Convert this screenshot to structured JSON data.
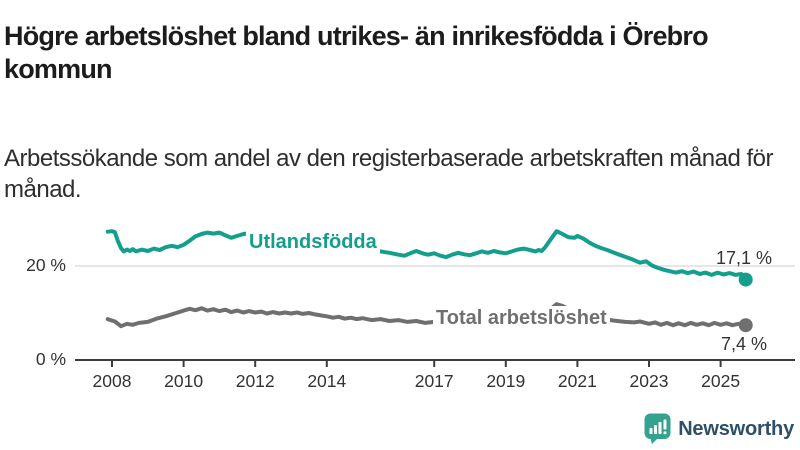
{
  "header": {
    "title": "Högre arbetslöshet bland utrikes- än inrikesfödda i Örebro kommun",
    "subtitle": "Arbetssökande som andel av den registerbaserade arbetskraften månad för månad."
  },
  "colors": {
    "teal_series": "#149e8d",
    "gray_series": "#6f6f6f",
    "axis": "#3c3c3c",
    "gridline": "#d8d8d8",
    "text": "#333333",
    "logo_icon": "#35a18f",
    "logo_text": "#2e4f68"
  },
  "chart_data": {
    "type": "line",
    "title": "Högre arbetslöshet bland utrikes- än inrikesfödda i Örebro kommun",
    "subtitle": "Arbetssökande som andel av den registerbaserade arbetskraften månad för månad.",
    "grid": "horizontal, only at 20 %",
    "legend_position": "inline labels on lines, value labels at line ends",
    "y_axis": {
      "ticks": [
        {
          "value": 0,
          "label": "0 %"
        },
        {
          "value": 20,
          "label": "20 %"
        }
      ],
      "range": [
        0,
        30
      ]
    },
    "x_axis": {
      "ticks": [
        {
          "value": 2008,
          "label": "2008"
        },
        {
          "value": 2010,
          "label": "2010"
        },
        {
          "value": 2012,
          "label": "2012"
        },
        {
          "value": 2014,
          "label": "2014"
        },
        {
          "value": 2017,
          "label": "2017"
        },
        {
          "value": 2019,
          "label": "2019"
        },
        {
          "value": 2021,
          "label": "2021"
        },
        {
          "value": 2023,
          "label": "2023"
        },
        {
          "value": 2025,
          "label": "2025"
        }
      ],
      "range": [
        2007.8,
        2026.2
      ]
    },
    "series": [
      {
        "name": "Utlandsfödda",
        "color": "#149e8d",
        "end_label": "17,1 %",
        "end_value": 17.1,
        "points": [
          [
            2007.88,
            27.3
          ],
          [
            2008.0,
            27.4
          ],
          [
            2008.08,
            27.2
          ],
          [
            2008.17,
            25.2
          ],
          [
            2008.25,
            23.8
          ],
          [
            2008.33,
            23.1
          ],
          [
            2008.42,
            23.5
          ],
          [
            2008.5,
            23.2
          ],
          [
            2008.58,
            23.6
          ],
          [
            2008.67,
            23.1
          ],
          [
            2008.83,
            23.5
          ],
          [
            2009.0,
            23.2
          ],
          [
            2009.17,
            23.7
          ],
          [
            2009.33,
            23.4
          ],
          [
            2009.5,
            24.0
          ],
          [
            2009.67,
            24.3
          ],
          [
            2009.83,
            24.0
          ],
          [
            2010.0,
            24.5
          ],
          [
            2010.17,
            25.4
          ],
          [
            2010.33,
            26.3
          ],
          [
            2010.5,
            26.8
          ],
          [
            2010.67,
            27.1
          ],
          [
            2010.83,
            26.9
          ],
          [
            2011.0,
            27.1
          ],
          [
            2011.17,
            26.5
          ],
          [
            2011.33,
            26.0
          ],
          [
            2011.5,
            26.4
          ],
          [
            2011.67,
            26.8
          ],
          [
            2011.83,
            27.0
          ],
          [
            2012.0,
            26.6
          ],
          [
            2012.17,
            25.9
          ],
          [
            2012.33,
            25.4
          ],
          [
            2012.5,
            25.9
          ],
          [
            2012.67,
            26.3
          ],
          [
            2012.83,
            26.7
          ],
          [
            2013.0,
            26.4
          ],
          [
            2013.25,
            26.0
          ],
          [
            2013.5,
            25.7
          ],
          [
            2013.75,
            25.3
          ],
          [
            2014.0,
            25.0
          ],
          [
            2014.25,
            24.6
          ],
          [
            2014.5,
            24.3
          ],
          [
            2014.75,
            23.9
          ],
          [
            2015.0,
            23.6
          ],
          [
            2015.25,
            23.3
          ],
          [
            2015.5,
            23.1
          ],
          [
            2015.75,
            22.8
          ],
          [
            2016.0,
            22.4
          ],
          [
            2016.17,
            22.2
          ],
          [
            2016.33,
            22.7
          ],
          [
            2016.5,
            23.2
          ],
          [
            2016.67,
            22.7
          ],
          [
            2016.83,
            22.4
          ],
          [
            2017.0,
            22.7
          ],
          [
            2017.17,
            22.2
          ],
          [
            2017.33,
            21.9
          ],
          [
            2017.5,
            22.4
          ],
          [
            2017.67,
            22.8
          ],
          [
            2017.83,
            22.5
          ],
          [
            2018.0,
            22.3
          ],
          [
            2018.17,
            22.7
          ],
          [
            2018.33,
            23.1
          ],
          [
            2018.5,
            22.8
          ],
          [
            2018.67,
            23.2
          ],
          [
            2018.83,
            22.9
          ],
          [
            2019.0,
            22.7
          ],
          [
            2019.17,
            23.1
          ],
          [
            2019.33,
            23.5
          ],
          [
            2019.5,
            23.7
          ],
          [
            2019.67,
            23.4
          ],
          [
            2019.83,
            23.1
          ],
          [
            2019.92,
            23.4
          ],
          [
            2020.0,
            23.2
          ],
          [
            2020.08,
            23.8
          ],
          [
            2020.25,
            25.6
          ],
          [
            2020.42,
            27.4
          ],
          [
            2020.5,
            27.1
          ],
          [
            2020.58,
            26.8
          ],
          [
            2020.75,
            26.1
          ],
          [
            2020.92,
            26.0
          ],
          [
            2021.0,
            26.4
          ],
          [
            2021.17,
            25.8
          ],
          [
            2021.33,
            25.0
          ],
          [
            2021.5,
            24.3
          ],
          [
            2021.67,
            23.8
          ],
          [
            2021.83,
            23.4
          ],
          [
            2022.0,
            22.9
          ],
          [
            2022.25,
            22.2
          ],
          [
            2022.5,
            21.5
          ],
          [
            2022.75,
            20.7
          ],
          [
            2022.92,
            21.0
          ],
          [
            2023.08,
            20.1
          ],
          [
            2023.25,
            19.6
          ],
          [
            2023.42,
            19.2
          ],
          [
            2023.58,
            18.9
          ],
          [
            2023.75,
            18.6
          ],
          [
            2023.92,
            18.9
          ],
          [
            2024.08,
            18.5
          ],
          [
            2024.25,
            18.8
          ],
          [
            2024.42,
            18.3
          ],
          [
            2024.58,
            18.6
          ],
          [
            2024.75,
            18.1
          ],
          [
            2024.92,
            18.6
          ],
          [
            2025.08,
            18.2
          ],
          [
            2025.25,
            18.5
          ],
          [
            2025.42,
            18.1
          ],
          [
            2025.58,
            18.3
          ],
          [
            2025.7,
            17.1
          ]
        ]
      },
      {
        "name": "Total arbetslöshet",
        "color": "#6f6f6f",
        "end_label": "7,4 %",
        "end_value": 7.4,
        "points": [
          [
            2007.88,
            8.7
          ],
          [
            2008.08,
            8.2
          ],
          [
            2008.25,
            7.2
          ],
          [
            2008.42,
            7.7
          ],
          [
            2008.58,
            7.5
          ],
          [
            2008.75,
            7.9
          ],
          [
            2009.0,
            8.1
          ],
          [
            2009.25,
            8.8
          ],
          [
            2009.5,
            9.3
          ],
          [
            2009.75,
            9.9
          ],
          [
            2010.0,
            10.5
          ],
          [
            2010.17,
            10.9
          ],
          [
            2010.33,
            10.6
          ],
          [
            2010.5,
            11.0
          ],
          [
            2010.67,
            10.5
          ],
          [
            2010.83,
            10.8
          ],
          [
            2011.0,
            10.4
          ],
          [
            2011.17,
            10.7
          ],
          [
            2011.33,
            10.2
          ],
          [
            2011.5,
            10.5
          ],
          [
            2011.67,
            10.1
          ],
          [
            2011.83,
            10.4
          ],
          [
            2012.0,
            10.1
          ],
          [
            2012.17,
            10.3
          ],
          [
            2012.33,
            9.9
          ],
          [
            2012.5,
            10.2
          ],
          [
            2012.67,
            9.9
          ],
          [
            2012.83,
            10.1
          ],
          [
            2013.0,
            9.9
          ],
          [
            2013.17,
            10.1
          ],
          [
            2013.33,
            9.8
          ],
          [
            2013.5,
            10.0
          ],
          [
            2013.67,
            9.7
          ],
          [
            2013.83,
            9.5
          ],
          [
            2014.0,
            9.3
          ],
          [
            2014.17,
            9.0
          ],
          [
            2014.33,
            9.2
          ],
          [
            2014.5,
            8.8
          ],
          [
            2014.67,
            9.0
          ],
          [
            2014.83,
            8.7
          ],
          [
            2015.0,
            8.9
          ],
          [
            2015.25,
            8.5
          ],
          [
            2015.5,
            8.7
          ],
          [
            2015.75,
            8.3
          ],
          [
            2016.0,
            8.5
          ],
          [
            2016.25,
            8.1
          ],
          [
            2016.5,
            8.3
          ],
          [
            2016.75,
            7.9
          ],
          [
            2017.0,
            8.1
          ],
          [
            2017.25,
            7.8
          ],
          [
            2017.5,
            7.9
          ],
          [
            2018.0,
            7.7
          ],
          [
            2018.5,
            7.9
          ],
          [
            2019.0,
            7.8
          ],
          [
            2019.5,
            8.0
          ],
          [
            2020.0,
            8.4
          ],
          [
            2020.25,
            10.8
          ],
          [
            2020.42,
            11.9
          ],
          [
            2020.58,
            11.5
          ],
          [
            2020.83,
            10.6
          ],
          [
            2021.0,
            10.2
          ],
          [
            2021.33,
            9.4
          ],
          [
            2021.67,
            8.8
          ],
          [
            2022.0,
            8.4
          ],
          [
            2022.33,
            8.1
          ],
          [
            2022.58,
            8.0
          ],
          [
            2022.75,
            8.2
          ],
          [
            2023.0,
            7.7
          ],
          [
            2023.17,
            8.0
          ],
          [
            2023.33,
            7.5
          ],
          [
            2023.5,
            7.9
          ],
          [
            2023.67,
            7.4
          ],
          [
            2023.83,
            7.8
          ],
          [
            2024.0,
            7.4
          ],
          [
            2024.17,
            7.9
          ],
          [
            2024.33,
            7.5
          ],
          [
            2024.5,
            7.8
          ],
          [
            2024.67,
            7.4
          ],
          [
            2024.83,
            7.9
          ],
          [
            2025.0,
            7.5
          ],
          [
            2025.17,
            7.8
          ],
          [
            2025.33,
            7.4
          ],
          [
            2025.5,
            7.7
          ],
          [
            2025.7,
            7.4
          ]
        ]
      }
    ]
  },
  "footer": {
    "brand": "Newsworthy"
  }
}
